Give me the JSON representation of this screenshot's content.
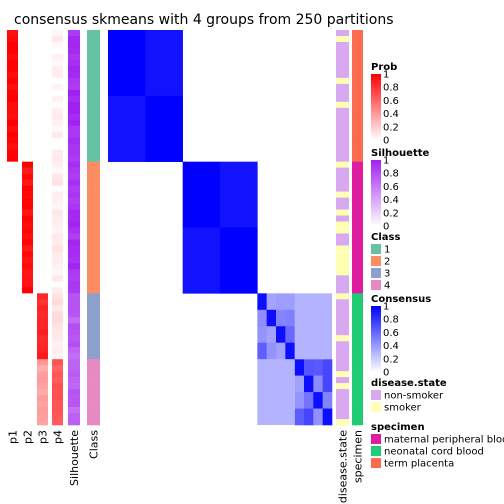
{
  "chart_data": {
    "type": "heatmap",
    "title": "consensus skmeans with 4 groups from 250 partitions",
    "column_labels": [
      "p1",
      "p2",
      "p3",
      "p4",
      "Silhouette",
      "Class"
    ],
    "right_column_labels": [
      "disease.state",
      "specimen"
    ],
    "groups": [
      {
        "class": "1",
        "size": 22,
        "color": "#66c2a5",
        "prob": [
          1,
          0,
          0,
          0.03
        ],
        "silhouette": 0.95,
        "specimen": "term placenta"
      },
      {
        "class": "2",
        "size": 22,
        "color": "#fc8d62",
        "prob": [
          0,
          0.95,
          0,
          0.06
        ],
        "silhouette": 0.92,
        "specimen": "maternal peripheral blood"
      },
      {
        "class": "3",
        "size": 11,
        "color": "#8da0cb",
        "prob": [
          0,
          0,
          0.85,
          0.1
        ],
        "silhouette": 0.72,
        "specimen": "neonatal cord blood"
      },
      {
        "class": "4",
        "size": 11,
        "color": "#e78ac3",
        "prob": [
          0,
          0,
          0.35,
          0.65
        ],
        "silhouette": 0.7,
        "specimen": "neonatal cord blood"
      }
    ],
    "legends": {
      "prob": {
        "title": "Prob",
        "ticks": [
          "1",
          "0.8",
          "0.6",
          "0.4",
          "0.2",
          "0"
        ],
        "color_low": "#ffffff",
        "color_high": "#ff0000"
      },
      "silhouette": {
        "title": "Silhouette",
        "ticks": [
          "1",
          "0.8",
          "0.6",
          "0.4",
          "0.2",
          "0"
        ],
        "color_low": "#ffffff",
        "color_high": "#a020f0"
      },
      "class": {
        "title": "Class",
        "items": [
          {
            "label": "1",
            "color": "#66c2a5"
          },
          {
            "label": "2",
            "color": "#fc8d62"
          },
          {
            "label": "3",
            "color": "#8da0cb"
          },
          {
            "label": "4",
            "color": "#e78ac3"
          }
        ]
      },
      "consensus": {
        "title": "Consensus",
        "ticks": [
          "1",
          "0.8",
          "0.6",
          "0.4",
          "0.2",
          "0"
        ],
        "color_low": "#ffffff",
        "color_high": "#0000ff"
      },
      "disease_state": {
        "title": "disease.state",
        "items": [
          {
            "label": "non-smoker",
            "color": "#d8a9f0"
          },
          {
            "label": "smoker",
            "color": "#ffffb3"
          }
        ]
      },
      "specimen": {
        "title": "specimen",
        "items": [
          {
            "label": "maternal peripheral blood",
            "color": "#dd1c9f"
          },
          {
            "label": "neonatal cord blood",
            "color": "#1fcc74"
          },
          {
            "label": "term placenta",
            "color": "#fa6b50"
          }
        ]
      }
    }
  }
}
